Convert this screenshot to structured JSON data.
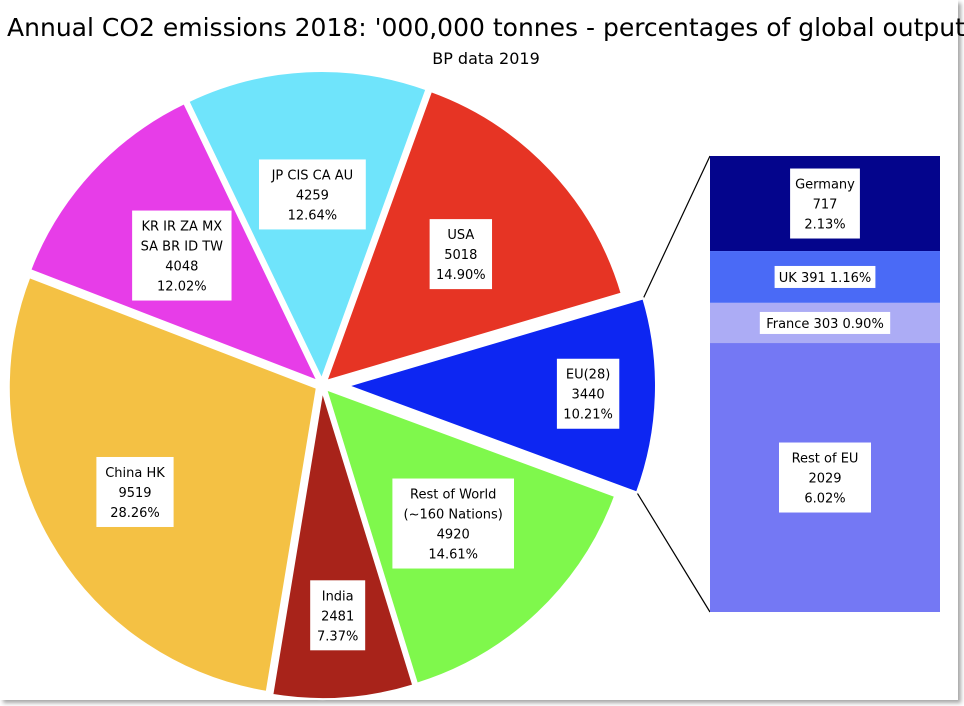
{
  "chart_data": {
    "type": "pie",
    "title": "Annual CO2 emissions 2018:  '000,000 tonnes - percentages of global output",
    "subtitle": "BP data 2019",
    "slices": [
      {
        "label": [
          "EU(28)"
        ],
        "value": 3440,
        "value_text": "3440",
        "percent": "10.21%",
        "color": "#0d26f2",
        "exploded": true
      },
      {
        "label": [
          "Rest of World",
          "(~160 Nations)"
        ],
        "value": 4920,
        "value_text": "4920",
        "percent": "14.61%",
        "color": "#7ff84c"
      },
      {
        "label": [
          "India"
        ],
        "value": 2481,
        "value_text": "2481",
        "percent": "7.37%",
        "color": "#a8231a"
      },
      {
        "label": [
          "China HK"
        ],
        "value": 9519,
        "value_text": "9519",
        "percent": "28.26%",
        "color": "#f4c144"
      },
      {
        "label": [
          "KR IR ZA MX",
          "SA BR ID TW"
        ],
        "value": 4048,
        "value_text": "4048",
        "percent": "12.02%",
        "color": "#e73de8"
      },
      {
        "label": [
          "JP CIS CA AU"
        ],
        "value": 4259,
        "value_text": "4259",
        "percent": "12.64%",
        "color": "#6fe4fb"
      },
      {
        "label": [
          "USA"
        ],
        "value": 5018,
        "value_text": "5018",
        "percent": "14.90%",
        "color": "#e63424"
      }
    ],
    "breakdown": {
      "of": "EU(28)",
      "type": "stacked_bar",
      "segments": [
        {
          "name": "Germany",
          "value": 717,
          "value_text": "717",
          "percent": "2.13%",
          "color": "#04058c",
          "layout": "stacked"
        },
        {
          "name": "UK",
          "value": 391,
          "value_text": "391",
          "percent": "1.16%",
          "color": "#4a6af6",
          "layout": "inline"
        },
        {
          "name": "France",
          "value": 303,
          "value_text": "303",
          "percent": "0.90%",
          "color": "#acacf5",
          "layout": "inline"
        },
        {
          "name": "Rest of EU",
          "value": 2029,
          "value_text": "2029",
          "percent": "6.02%",
          "color": "#7478f4",
          "layout": "stacked"
        }
      ]
    }
  }
}
